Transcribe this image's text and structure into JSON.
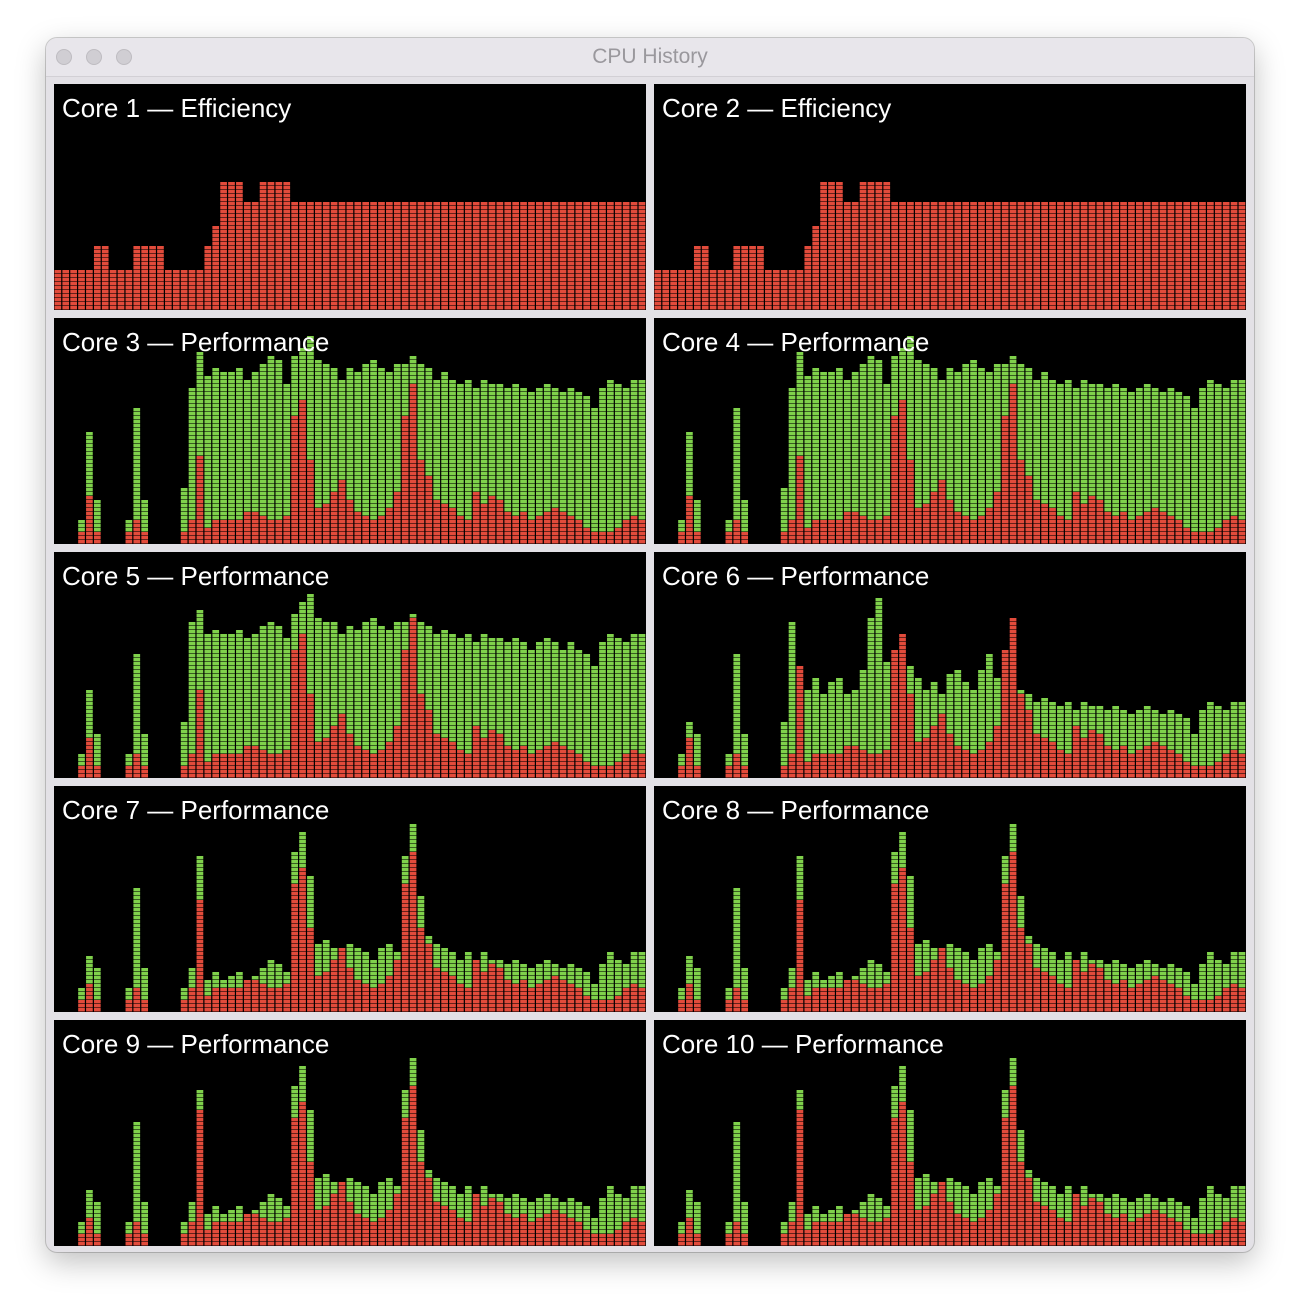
{
  "window": {
    "title": "CPU History"
  },
  "colors": {
    "system": "#e24b3b",
    "user": "#7fd14b",
    "background": "#000000"
  },
  "cores": [
    {
      "label": "Core 1 — Efficiency",
      "system": [
        18,
        18,
        18,
        18,
        18,
        28,
        28,
        18,
        18,
        18,
        28,
        28,
        28,
        28,
        18,
        18,
        18,
        18,
        18,
        28,
        38,
        58,
        58,
        58,
        48,
        48,
        58,
        58,
        58,
        58,
        48,
        48,
        48,
        48,
        48,
        48,
        48,
        48,
        48,
        48,
        48,
        48,
        48,
        48,
        48,
        48,
        48,
        48,
        48,
        48,
        48,
        48,
        48,
        48,
        48,
        48,
        48,
        48,
        48,
        48,
        48,
        48,
        48,
        48,
        48,
        48,
        48,
        48,
        48,
        48,
        48,
        48,
        48,
        48,
        48
      ],
      "user": [
        10,
        10,
        10,
        10,
        10,
        20,
        20,
        10,
        10,
        10,
        20,
        20,
        20,
        20,
        10,
        10,
        10,
        10,
        10,
        20,
        30,
        50,
        50,
        50,
        40,
        40,
        50,
        50,
        50,
        50,
        40,
        40,
        40,
        40,
        40,
        40,
        40,
        40,
        40,
        40,
        40,
        40,
        40,
        40,
        40,
        40,
        40,
        40,
        40,
        40,
        40,
        40,
        40,
        40,
        40,
        40,
        40,
        40,
        40,
        40,
        40,
        40,
        40,
        40,
        40,
        40,
        40,
        40,
        40,
        40,
        40,
        40,
        40,
        40,
        40
      ]
    },
    {
      "label": "Core 2 — Efficiency",
      "system": [
        18,
        18,
        18,
        18,
        18,
        28,
        28,
        18,
        18,
        18,
        28,
        28,
        28,
        28,
        18,
        18,
        18,
        18,
        18,
        28,
        38,
        58,
        58,
        58,
        48,
        48,
        58,
        58,
        58,
        58,
        48,
        48,
        48,
        48,
        48,
        48,
        48,
        48,
        48,
        48,
        48,
        48,
        48,
        48,
        48,
        48,
        48,
        48,
        48,
        48,
        48,
        48,
        48,
        48,
        48,
        48,
        48,
        48,
        48,
        48,
        48,
        48,
        48,
        48,
        48,
        48,
        48,
        48,
        48,
        48,
        48,
        48,
        48,
        48,
        48
      ],
      "user": [
        10,
        10,
        10,
        10,
        10,
        20,
        20,
        10,
        10,
        10,
        20,
        20,
        20,
        20,
        10,
        10,
        10,
        10,
        10,
        20,
        30,
        50,
        50,
        50,
        40,
        40,
        50,
        50,
        50,
        50,
        40,
        40,
        40,
        40,
        40,
        40,
        40,
        40,
        40,
        40,
        40,
        40,
        40,
        40,
        40,
        40,
        40,
        40,
        40,
        40,
        40,
        40,
        40,
        40,
        40,
        40,
        40,
        40,
        40,
        40,
        40,
        40,
        40,
        40,
        40,
        40,
        40,
        40,
        40,
        40,
        40,
        40,
        40,
        40,
        40
      ]
    },
    {
      "label": "Core 3 — Performance",
      "system": [
        0,
        0,
        0,
        5,
        22,
        5,
        0,
        0,
        0,
        5,
        10,
        5,
        0,
        0,
        0,
        0,
        5,
        10,
        40,
        8,
        10,
        10,
        10,
        10,
        15,
        15,
        12,
        10,
        10,
        12,
        58,
        64,
        38,
        16,
        18,
        24,
        28,
        20,
        15,
        12,
        10,
        12,
        16,
        24,
        58,
        72,
        38,
        30,
        20,
        18,
        16,
        12,
        10,
        24,
        18,
        22,
        20,
        14,
        12,
        14,
        10,
        12,
        14,
        16,
        14,
        12,
        10,
        8,
        6,
        5,
        6,
        8,
        10,
        12,
        10
      ],
      "user": [
        0,
        0,
        0,
        10,
        50,
        20,
        0,
        0,
        0,
        10,
        60,
        20,
        0,
        0,
        0,
        0,
        25,
        70,
        85,
        75,
        78,
        76,
        76,
        78,
        74,
        76,
        80,
        84,
        82,
        72,
        84,
        88,
        92,
        82,
        80,
        79,
        74,
        78,
        76,
        80,
        82,
        78,
        76,
        80,
        80,
        84,
        80,
        78,
        74,
        76,
        74,
        72,
        74,
        70,
        74,
        72,
        72,
        70,
        72,
        70,
        68,
        70,
        72,
        70,
        68,
        70,
        68,
        66,
        60,
        70,
        74,
        72,
        70,
        74,
        74
      ]
    },
    {
      "label": "Core 4 — Performance",
      "system": [
        0,
        0,
        0,
        5,
        22,
        5,
        0,
        0,
        0,
        5,
        10,
        5,
        0,
        0,
        0,
        0,
        5,
        10,
        40,
        8,
        10,
        10,
        10,
        10,
        15,
        15,
        12,
        10,
        10,
        12,
        58,
        64,
        38,
        16,
        18,
        24,
        28,
        20,
        15,
        12,
        10,
        12,
        16,
        24,
        58,
        72,
        38,
        30,
        20,
        18,
        16,
        12,
        10,
        24,
        18,
        22,
        20,
        14,
        12,
        14,
        10,
        12,
        14,
        16,
        14,
        12,
        10,
        8,
        6,
        5,
        6,
        8,
        10,
        12,
        10
      ],
      "user": [
        0,
        0,
        0,
        10,
        50,
        20,
        0,
        0,
        0,
        10,
        60,
        20,
        0,
        0,
        0,
        0,
        25,
        70,
        85,
        75,
        78,
        76,
        76,
        78,
        74,
        76,
        80,
        84,
        82,
        72,
        84,
        88,
        92,
        82,
        80,
        79,
        74,
        78,
        76,
        80,
        82,
        78,
        76,
        80,
        80,
        84,
        80,
        78,
        74,
        76,
        74,
        72,
        74,
        70,
        74,
        72,
        72,
        70,
        72,
        70,
        68,
        70,
        72,
        70,
        68,
        70,
        68,
        66,
        60,
        70,
        74,
        72,
        70,
        74,
        74
      ]
    },
    {
      "label": "Core 5 — Performance",
      "system": [
        0,
        0,
        0,
        5,
        18,
        5,
        0,
        0,
        0,
        5,
        10,
        5,
        0,
        0,
        0,
        0,
        5,
        10,
        40,
        8,
        10,
        10,
        10,
        10,
        15,
        15,
        12,
        10,
        10,
        12,
        58,
        64,
        38,
        16,
        18,
        24,
        28,
        20,
        15,
        12,
        10,
        12,
        16,
        24,
        58,
        72,
        38,
        30,
        20,
        18,
        16,
        12,
        10,
        24,
        18,
        22,
        20,
        14,
        12,
        14,
        10,
        12,
        14,
        16,
        14,
        12,
        10,
        8,
        6,
        5,
        6,
        8,
        10,
        12,
        10
      ],
      "user": [
        0,
        0,
        0,
        10,
        40,
        20,
        0,
        0,
        0,
        10,
        55,
        20,
        0,
        0,
        0,
        0,
        25,
        70,
        75,
        65,
        66,
        64,
        64,
        66,
        62,
        64,
        68,
        70,
        68,
        62,
        74,
        78,
        82,
        72,
        70,
        69,
        64,
        68,
        66,
        70,
        72,
        68,
        66,
        70,
        70,
        74,
        70,
        68,
        64,
        66,
        64,
        62,
        64,
        60,
        64,
        62,
        62,
        60,
        62,
        60,
        58,
        60,
        62,
        60,
        58,
        60,
        58,
        56,
        50,
        60,
        64,
        62,
        60,
        64,
        64
      ]
    },
    {
      "label": "Core 6 — Performance",
      "system": [
        0,
        0,
        0,
        5,
        18,
        5,
        0,
        0,
        0,
        5,
        10,
        5,
        0,
        0,
        0,
        0,
        5,
        10,
        50,
        8,
        10,
        10,
        10,
        10,
        15,
        15,
        12,
        10,
        10,
        12,
        58,
        64,
        38,
        16,
        18,
        24,
        28,
        20,
        15,
        12,
        10,
        12,
        16,
        24,
        58,
        72,
        38,
        30,
        20,
        18,
        16,
        12,
        10,
        24,
        18,
        22,
        20,
        14,
        12,
        14,
        10,
        12,
        14,
        16,
        14,
        12,
        10,
        8,
        6,
        5,
        6,
        8,
        10,
        12,
        10
      ],
      "user": [
        0,
        0,
        0,
        10,
        25,
        20,
        0,
        0,
        0,
        10,
        55,
        20,
        0,
        0,
        0,
        0,
        25,
        70,
        50,
        40,
        44,
        38,
        42,
        44,
        38,
        40,
        48,
        72,
        80,
        52,
        46,
        40,
        50,
        44,
        40,
        42,
        38,
        46,
        48,
        42,
        40,
        48,
        56,
        44,
        40,
        46,
        40,
        38,
        34,
        36,
        34,
        32,
        34,
        30,
        34,
        32,
        32,
        30,
        32,
        30,
        28,
        30,
        32,
        30,
        28,
        30,
        28,
        26,
        20,
        30,
        34,
        32,
        30,
        34,
        34
      ]
    },
    {
      "label": "Core 7 — Performance",
      "system": [
        0,
        0,
        0,
        5,
        12,
        5,
        0,
        0,
        0,
        5,
        10,
        5,
        0,
        0,
        0,
        0,
        5,
        10,
        50,
        8,
        10,
        10,
        10,
        10,
        15,
        15,
        12,
        10,
        10,
        12,
        58,
        64,
        38,
        16,
        18,
        24,
        28,
        20,
        15,
        12,
        10,
        12,
        16,
        24,
        58,
        72,
        38,
        30,
        20,
        18,
        16,
        12,
        10,
        24,
        18,
        22,
        20,
        14,
        12,
        14,
        10,
        12,
        14,
        16,
        14,
        12,
        10,
        8,
        6,
        5,
        6,
        8,
        10,
        12,
        10
      ],
      "user": [
        0,
        0,
        0,
        10,
        25,
        20,
        0,
        0,
        0,
        10,
        55,
        20,
        0,
        0,
        0,
        0,
        10,
        20,
        70,
        15,
        18,
        14,
        16,
        18,
        14,
        16,
        20,
        24,
        22,
        18,
        72,
        80,
        60,
        30,
        32,
        28,
        26,
        30,
        28,
        26,
        24,
        28,
        30,
        26,
        70,
        84,
        52,
        34,
        30,
        28,
        26,
        24,
        26,
        22,
        26,
        24,
        24,
        22,
        24,
        22,
        20,
        22,
        24,
        22,
        20,
        22,
        20,
        18,
        12,
        22,
        26,
        24,
        22,
        26,
        26
      ]
    },
    {
      "label": "Core 8 — Performance",
      "system": [
        0,
        0,
        0,
        5,
        12,
        5,
        0,
        0,
        0,
        5,
        10,
        5,
        0,
        0,
        0,
        0,
        5,
        10,
        50,
        8,
        10,
        10,
        10,
        10,
        15,
        15,
        12,
        10,
        10,
        12,
        58,
        64,
        38,
        16,
        18,
        24,
        28,
        20,
        15,
        12,
        10,
        12,
        16,
        24,
        58,
        72,
        38,
        30,
        20,
        18,
        16,
        12,
        10,
        24,
        18,
        22,
        20,
        14,
        12,
        14,
        10,
        12,
        14,
        16,
        14,
        12,
        10,
        8,
        6,
        5,
        6,
        8,
        10,
        12,
        10
      ],
      "user": [
        0,
        0,
        0,
        10,
        25,
        20,
        0,
        0,
        0,
        10,
        55,
        20,
        0,
        0,
        0,
        0,
        10,
        20,
        70,
        15,
        18,
        14,
        16,
        18,
        14,
        16,
        20,
        24,
        22,
        18,
        72,
        80,
        60,
        30,
        32,
        28,
        26,
        30,
        28,
        26,
        24,
        28,
        30,
        26,
        70,
        84,
        52,
        34,
        30,
        28,
        26,
        24,
        26,
        22,
        26,
        24,
        24,
        22,
        24,
        22,
        20,
        22,
        24,
        22,
        20,
        22,
        20,
        18,
        12,
        22,
        26,
        24,
        22,
        26,
        26
      ]
    },
    {
      "label": "Core 9 — Performance",
      "system": [
        0,
        0,
        0,
        5,
        12,
        5,
        0,
        0,
        0,
        5,
        10,
        5,
        0,
        0,
        0,
        0,
        5,
        10,
        60,
        8,
        10,
        10,
        10,
        10,
        15,
        15,
        12,
        10,
        10,
        12,
        58,
        64,
        38,
        16,
        18,
        24,
        28,
        20,
        15,
        12,
        10,
        12,
        16,
        24,
        58,
        72,
        38,
        30,
        20,
        18,
        16,
        12,
        10,
        24,
        18,
        22,
        20,
        14,
        12,
        14,
        10,
        12,
        14,
        16,
        14,
        12,
        10,
        8,
        6,
        5,
        6,
        8,
        10,
        12,
        10
      ],
      "user": [
        0,
        0,
        0,
        10,
        25,
        20,
        0,
        0,
        0,
        10,
        55,
        20,
        0,
        0,
        0,
        0,
        10,
        20,
        70,
        15,
        18,
        14,
        16,
        18,
        14,
        16,
        20,
        24,
        22,
        18,
        72,
        80,
        60,
        30,
        32,
        28,
        26,
        30,
        28,
        26,
        24,
        28,
        30,
        26,
        70,
        84,
        52,
        34,
        30,
        28,
        26,
        24,
        26,
        22,
        26,
        24,
        24,
        22,
        24,
        22,
        20,
        22,
        24,
        22,
        20,
        22,
        20,
        18,
        12,
        22,
        26,
        24,
        22,
        26,
        26
      ]
    },
    {
      "label": "Core 10 — Performance",
      "system": [
        0,
        0,
        0,
        5,
        12,
        5,
        0,
        0,
        0,
        5,
        10,
        5,
        0,
        0,
        0,
        0,
        5,
        10,
        60,
        8,
        10,
        10,
        10,
        10,
        15,
        15,
        12,
        10,
        10,
        12,
        58,
        64,
        38,
        16,
        18,
        24,
        28,
        20,
        15,
        12,
        10,
        12,
        16,
        24,
        58,
        72,
        38,
        30,
        20,
        18,
        16,
        12,
        10,
        24,
        18,
        22,
        20,
        14,
        12,
        14,
        10,
        12,
        14,
        16,
        14,
        12,
        10,
        8,
        6,
        5,
        6,
        8,
        10,
        12,
        10
      ],
      "user": [
        0,
        0,
        0,
        10,
        25,
        20,
        0,
        0,
        0,
        10,
        55,
        20,
        0,
        0,
        0,
        0,
        10,
        20,
        70,
        15,
        18,
        14,
        16,
        18,
        14,
        16,
        20,
        24,
        22,
        18,
        72,
        80,
        60,
        30,
        32,
        28,
        26,
        30,
        28,
        26,
        24,
        28,
        30,
        26,
        70,
        84,
        52,
        34,
        30,
        28,
        26,
        24,
        26,
        22,
        26,
        24,
        24,
        22,
        24,
        22,
        20,
        22,
        24,
        22,
        20,
        22,
        20,
        18,
        12,
        22,
        26,
        24,
        22,
        26,
        26
      ]
    }
  ]
}
